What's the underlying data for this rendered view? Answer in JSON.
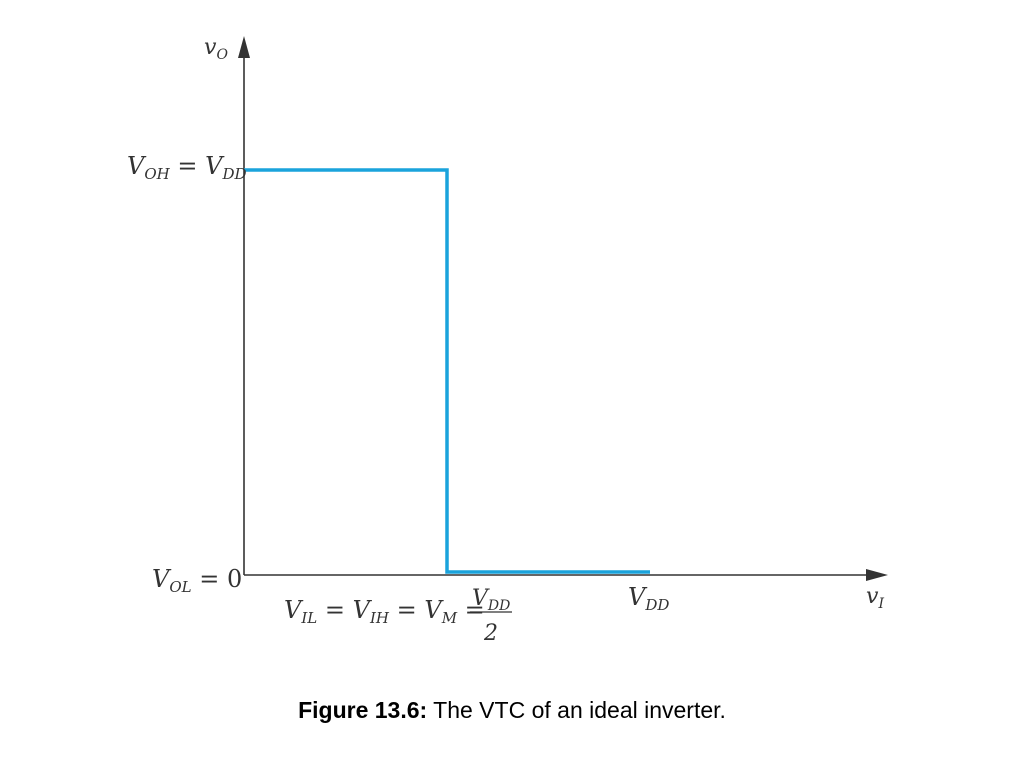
{
  "chart_data": {
    "type": "line",
    "title": "",
    "xlabel": {
      "base": "v",
      "sub": "I"
    },
    "ylabel": {
      "base": "v",
      "sub": "O"
    },
    "y_tick_labels": [
      {
        "parts": [
          {
            "t": "V",
            "sub": "OH"
          },
          {
            "t": " = "
          },
          {
            "t": "V",
            "sub": "DD"
          }
        ],
        "value": 1
      },
      {
        "parts": [
          {
            "t": "V",
            "sub": "OL"
          },
          {
            "t": " = 0"
          }
        ],
        "value": 0
      }
    ],
    "x_tick_labels": [
      {
        "parts": [
          {
            "t": "V",
            "sub": "IL"
          },
          {
            "t": " = "
          },
          {
            "t": "V",
            "sub": "IH"
          },
          {
            "t": " = "
          },
          {
            "t": "V",
            "sub": "M"
          },
          {
            "t": " ="
          }
        ],
        "fraction": {
          "numerator": {
            "t": "V",
            "sub": "DD"
          },
          "denominator": "2"
        },
        "value": 0.5
      },
      {
        "parts": [
          {
            "t": "V",
            "sub": "DD"
          }
        ],
        "value": 1
      }
    ],
    "xlim": [
      0,
      1
    ],
    "ylim": [
      0,
      1
    ],
    "units": "fraction of VDD",
    "series": [
      {
        "x": [
          0,
          0.5,
          0.5,
          1
        ],
        "y": [
          1,
          1,
          0,
          0
        ],
        "color": "#1AA3DC"
      }
    ],
    "axis_color": "#333333",
    "grid": false
  },
  "caption": {
    "label": "Figure 13.6:",
    "text": " The VTC of an ideal inverter."
  }
}
